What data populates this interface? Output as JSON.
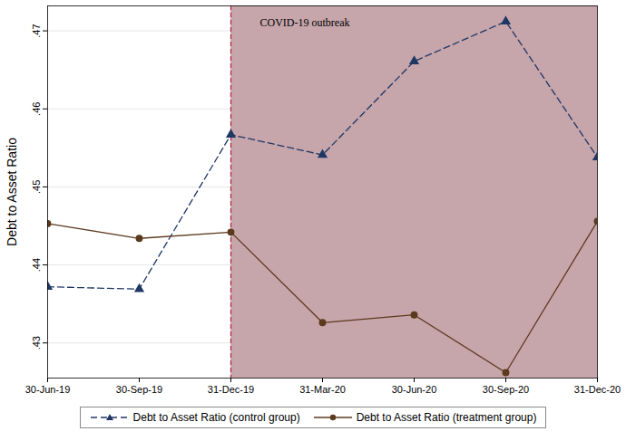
{
  "chart_data": {
    "type": "line",
    "categories": [
      "30-Jun-19",
      "30-Sep-19",
      "31-Dec-19",
      "31-Mar-20",
      "30-Jun-20",
      "30-Sep-20",
      "31-Dec-20"
    ],
    "y_label": "Debt to Asset Ratio",
    "ylim": [
      0.4255,
      0.4732
    ],
    "yticks": [
      {
        "value": 0.43,
        "label": ".43"
      },
      {
        "value": 0.44,
        "label": ".44"
      },
      {
        "value": 0.45,
        "label": ".45"
      },
      {
        "value": 0.46,
        "label": ".46"
      },
      {
        "value": 0.47,
        "label": ".47"
      }
    ],
    "grid": true,
    "legend": "bottom",
    "series": [
      {
        "name": "Debt to Asset Ratio (control group)",
        "color": "#1f3864",
        "marker": "triangle",
        "line_style": "dashed",
        "values": [
          0.4372,
          0.4369,
          0.4567,
          0.4541,
          0.4661,
          0.4712,
          0.4538
        ]
      },
      {
        "name": "Debt to Asset Ratio (treatment group)",
        "color": "#5b3a1e",
        "marker": "circle",
        "line_style": "solid",
        "values": [
          0.4453,
          0.4434,
          0.4442,
          0.4326,
          0.4336,
          0.4262,
          0.4456
        ]
      }
    ],
    "annotations": [
      {
        "text": "COVID-19 outbreak",
        "x": "31-Dec-19"
      }
    ]
  }
}
